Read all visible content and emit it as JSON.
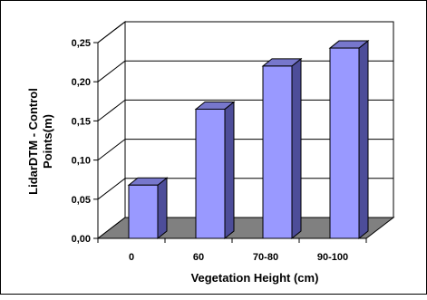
{
  "chart_data": {
    "type": "bar",
    "title": "",
    "xlabel": "Vegetation Height (cm)",
    "ylabel": "LidarDTM - Control Points(m)",
    "ylabel_lines": [
      "LidarDTM - Control",
      "Points(m)"
    ],
    "categories": [
      "0",
      "60",
      "70-80",
      "90-100"
    ],
    "values": [
      0.068,
      0.165,
      0.22,
      0.243
    ],
    "ylim": [
      0,
      0.25
    ],
    "yticks": [
      "0,00",
      "0,05",
      "0,10",
      "0,15",
      "0,20",
      "0,25"
    ],
    "grid": true,
    "legend": "none",
    "style": "3d",
    "colors": {
      "bar_front": "#9999ff",
      "bar_side": "#4d4d99",
      "bar_top": "#7777cc",
      "floor": "#808080",
      "wall": "#ffffff",
      "grid": "#000000"
    }
  }
}
